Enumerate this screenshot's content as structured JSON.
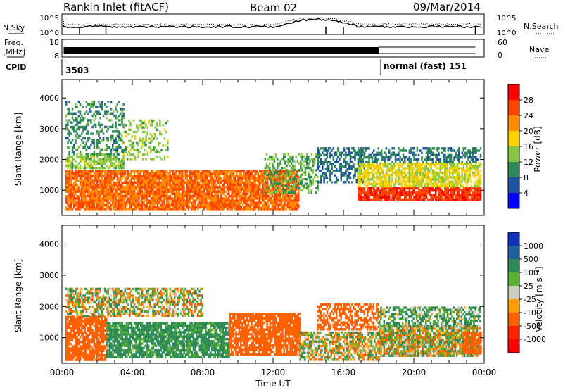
{
  "header": {
    "station": "Rankin Inlet (fitACF)",
    "beam": "Beam 02",
    "date": "09/Mar/2014"
  },
  "status_panels": {
    "nsky_label": "N.Sky",
    "nsearch_label": "N.Search",
    "noise_ticks": [
      "10^5",
      "10^0"
    ],
    "freq_label_line1": "Freq.",
    "freq_label_line2": "[MHz]",
    "freq_ticks": [
      "18",
      "8"
    ],
    "nave_label": "Nave",
    "nave_ticks": [
      "60",
      "0"
    ],
    "cpid_label": "CPID",
    "cpid_values": [
      "3503",
      "normal (fast) 151"
    ]
  },
  "x_axis": {
    "label": "Time UT",
    "ticks": [
      "00:00",
      "04:00",
      "08:00",
      "12:00",
      "16:00",
      "20:00",
      "00:00"
    ]
  },
  "power_colorbar": {
    "label": "Power [dB]",
    "ticks": [
      "28",
      "24",
      "20",
      "16",
      "12",
      "8",
      "4"
    ],
    "colors": [
      "#ff0000",
      "#ff4500",
      "#ff8c00",
      "#ffd000",
      "#88c840",
      "#2e8b57",
      "#2050a0",
      "#0000ff"
    ]
  },
  "velocity_colorbar": {
    "label": "Velocity [m s⁻¹]",
    "ticks": [
      "1000",
      "500",
      "100",
      "25",
      "-25",
      "-100",
      "-500",
      "-1000"
    ],
    "colors": [
      "#1030c0",
      "#2060a0",
      "#2e8b57",
      "#5ab030",
      "#cdcdc0",
      "#ffa000",
      "#ff6000",
      "#ff2000",
      "#ff0000"
    ]
  },
  "chart_data": [
    {
      "type": "heatmap",
      "title": "",
      "xlabel": "Time UT",
      "ylabel": "Slant Range [km]",
      "colorbar_label": "Power [dB]",
      "x_range_hours": [
        0,
        24
      ],
      "ylim": [
        180,
        4600
      ],
      "y_ticks": [
        1000,
        2000,
        3000,
        4000
      ],
      "color_range": [
        0,
        32
      ],
      "regions": [
        {
          "t": [
            0.2,
            13.4
          ],
          "r": [
            400,
            1650
          ],
          "value": 24,
          "density": 0.9
        },
        {
          "t": [
            0.2,
            3.5
          ],
          "r": [
            1700,
            2200
          ],
          "value": 14,
          "density": 0.7
        },
        {
          "t": [
            0.2,
            3.5
          ],
          "r": [
            2200,
            3900
          ],
          "value": 10,
          "density": 0.35
        },
        {
          "t": [
            3.5,
            6.0
          ],
          "r": [
            2000,
            3300
          ],
          "value": 14,
          "density": 0.35
        },
        {
          "t": [
            11.5,
            14.5
          ],
          "r": [
            900,
            2200
          ],
          "value": 12,
          "density": 0.45
        },
        {
          "t": [
            14.5,
            17.2
          ],
          "r": [
            1300,
            2400
          ],
          "value": 8,
          "density": 0.55
        },
        {
          "t": [
            16.8,
            23.8
          ],
          "r": [
            700,
            1100
          ],
          "value": 27,
          "density": 0.9
        },
        {
          "t": [
            16.8,
            23.8
          ],
          "r": [
            1100,
            1900
          ],
          "value": 17,
          "density": 0.75
        },
        {
          "t": [
            16.8,
            23.8
          ],
          "r": [
            1900,
            2400
          ],
          "value": 9,
          "density": 0.5
        }
      ]
    },
    {
      "type": "heatmap",
      "title": "",
      "xlabel": "Time UT",
      "ylabel": "Slant Range [km]",
      "colorbar_label": "Velocity [m s⁻¹]",
      "x_range_hours": [
        0,
        24
      ],
      "ylim": [
        180,
        4600
      ],
      "y_ticks": [
        1000,
        2000,
        3000,
        4000
      ],
      "color_range": [
        -1000,
        1000
      ],
      "regions": [
        {
          "t": [
            0.2,
            2.5
          ],
          "r": [
            300,
            1700
          ],
          "value": -300,
          "density": 0.85
        },
        {
          "t": [
            2.5,
            9.5
          ],
          "r": [
            400,
            1500
          ],
          "value": 200,
          "density": 0.85
        },
        {
          "t": [
            9.5,
            13.5
          ],
          "r": [
            500,
            1800
          ],
          "value": -300,
          "density": 0.85
        },
        {
          "t": [
            0.2,
            8.0
          ],
          "r": [
            1700,
            2600
          ],
          "value": 0,
          "density": 0.6
        },
        {
          "t": [
            13.5,
            18.0
          ],
          "r": [
            300,
            1200
          ],
          "value": 0,
          "density": 0.7
        },
        {
          "t": [
            14.5,
            18.0
          ],
          "r": [
            1300,
            2100
          ],
          "value": -300,
          "density": 0.6
        },
        {
          "t": [
            18.0,
            23.8
          ],
          "r": [
            400,
            1400
          ],
          "value": 0,
          "density": 0.9
        },
        {
          "t": [
            18.0,
            23.8
          ],
          "r": [
            1400,
            2000
          ],
          "value": 120,
          "density": 0.6
        },
        {
          "t": [
            22.8,
            23.8
          ],
          "r": [
            500,
            1200
          ],
          "value": -300,
          "density": 0.8
        }
      ]
    }
  ]
}
